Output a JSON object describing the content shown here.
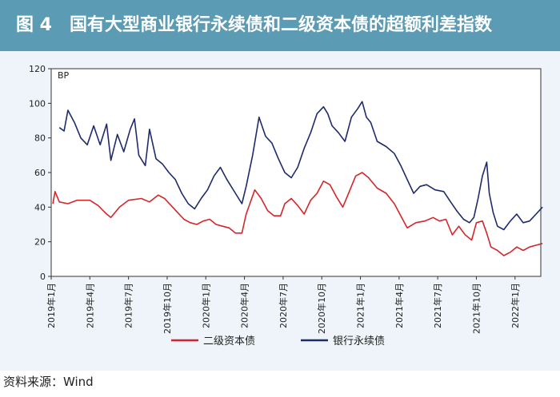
{
  "header": {
    "title": "图 4　国有大型商业银行永续债和二级资本债的超额利差指数"
  },
  "source": "资料来源：Wind",
  "colors": {
    "header_bg": "#5b9bb4",
    "panel_bg": "#eef4fa",
    "tier2": "#d3262b",
    "perpetual": "#1f2a6b"
  },
  "chart_data": {
    "type": "line",
    "ylabel": "BP",
    "ylim": [
      0,
      120
    ],
    "yticks": [
      0,
      20,
      40,
      60,
      80,
      100,
      120
    ],
    "xlim": [
      "2019-01",
      "2022-03"
    ],
    "xticks": [
      "2019年1月",
      "2019年4月",
      "2019年7月",
      "2019年10月",
      "2020年1月",
      "2020年4月",
      "2020年7月",
      "2020年10月",
      "2021年1月",
      "2021年4月",
      "2021年7月",
      "2021年10月",
      "2022年1月"
    ],
    "grid": false,
    "legend_position": "bottom",
    "series": [
      {
        "name": "二级资本债",
        "color": "#d3262b",
        "points": [
          [
            "2019-01-05",
            42
          ],
          [
            "2019-01-10",
            49
          ],
          [
            "2019-01-20",
            43
          ],
          [
            "2019-02-10",
            42
          ],
          [
            "2019-03-01",
            44
          ],
          [
            "2019-04-01",
            44
          ],
          [
            "2019-04-20",
            41
          ],
          [
            "2019-05-10",
            36
          ],
          [
            "2019-05-20",
            34
          ],
          [
            "2019-06-10",
            40
          ],
          [
            "2019-07-01",
            44
          ],
          [
            "2019-08-01",
            45
          ],
          [
            "2019-08-20",
            43
          ],
          [
            "2019-09-10",
            47
          ],
          [
            "2019-09-25",
            45
          ],
          [
            "2019-10-10",
            41
          ],
          [
            "2019-10-25",
            37
          ],
          [
            "2019-11-10",
            33
          ],
          [
            "2019-11-25",
            31
          ],
          [
            "2019-12-10",
            30
          ],
          [
            "2019-12-25",
            32
          ],
          [
            "2020-01-10",
            33
          ],
          [
            "2020-01-25",
            30
          ],
          [
            "2020-02-10",
            29
          ],
          [
            "2020-02-25",
            28
          ],
          [
            "2020-03-10",
            25
          ],
          [
            "2020-03-25",
            25
          ],
          [
            "2020-04-05",
            36
          ],
          [
            "2020-04-15",
            43
          ],
          [
            "2020-04-25",
            50
          ],
          [
            "2020-05-10",
            45
          ],
          [
            "2020-05-25",
            38
          ],
          [
            "2020-06-10",
            35
          ],
          [
            "2020-06-25",
            35
          ],
          [
            "2020-07-05",
            42
          ],
          [
            "2020-07-20",
            45
          ],
          [
            "2020-08-05",
            41
          ],
          [
            "2020-08-20",
            36
          ],
          [
            "2020-09-05",
            44
          ],
          [
            "2020-09-20",
            48
          ],
          [
            "2020-10-05",
            55
          ],
          [
            "2020-10-20",
            53
          ],
          [
            "2020-11-05",
            46
          ],
          [
            "2020-11-20",
            40
          ],
          [
            "2020-12-05",
            49
          ],
          [
            "2020-12-20",
            58
          ],
          [
            "2021-01-05",
            60
          ],
          [
            "2021-01-20",
            57
          ],
          [
            "2021-02-10",
            51
          ],
          [
            "2021-03-01",
            48
          ],
          [
            "2021-03-20",
            42
          ],
          [
            "2021-04-05",
            35
          ],
          [
            "2021-04-20",
            28
          ],
          [
            "2021-05-10",
            31
          ],
          [
            "2021-06-01",
            32
          ],
          [
            "2021-06-20",
            34
          ],
          [
            "2021-07-05",
            32
          ],
          [
            "2021-07-20",
            33
          ],
          [
            "2021-08-05",
            24
          ],
          [
            "2021-08-20",
            29
          ],
          [
            "2021-09-05",
            24
          ],
          [
            "2021-09-20",
            21
          ],
          [
            "2021-10-01",
            31
          ],
          [
            "2021-10-15",
            32
          ],
          [
            "2021-10-25",
            25
          ],
          [
            "2021-11-05",
            17
          ],
          [
            "2021-11-20",
            15
          ],
          [
            "2021-12-05",
            12
          ],
          [
            "2021-12-20",
            14
          ],
          [
            "2022-01-05",
            17
          ],
          [
            "2022-01-20",
            15
          ],
          [
            "2022-02-05",
            17
          ],
          [
            "2022-02-20",
            18
          ],
          [
            "2022-03-05",
            19
          ]
        ]
      },
      {
        "name": "银行永续债",
        "color": "#1f2a6b",
        "points": [
          [
            "2019-01-20",
            86
          ],
          [
            "2019-02-01",
            84
          ],
          [
            "2019-02-10",
            96
          ],
          [
            "2019-02-25",
            89
          ],
          [
            "2019-03-10",
            80
          ],
          [
            "2019-03-25",
            76
          ],
          [
            "2019-04-10",
            87
          ],
          [
            "2019-04-25",
            76
          ],
          [
            "2019-05-10",
            88
          ],
          [
            "2019-05-20",
            67
          ],
          [
            "2019-06-05",
            82
          ],
          [
            "2019-06-20",
            72
          ],
          [
            "2019-07-05",
            85
          ],
          [
            "2019-07-15",
            91
          ],
          [
            "2019-07-25",
            70
          ],
          [
            "2019-08-10",
            64
          ],
          [
            "2019-08-20",
            85
          ],
          [
            "2019-09-05",
            68
          ],
          [
            "2019-09-20",
            65
          ],
          [
            "2019-10-05",
            60
          ],
          [
            "2019-10-20",
            56
          ],
          [
            "2019-11-05",
            48
          ],
          [
            "2019-11-20",
            42
          ],
          [
            "2019-12-05",
            39
          ],
          [
            "2019-12-20",
            45
          ],
          [
            "2020-01-05",
            50
          ],
          [
            "2020-01-20",
            58
          ],
          [
            "2020-02-05",
            63
          ],
          [
            "2020-02-20",
            56
          ],
          [
            "2020-03-10",
            48
          ],
          [
            "2020-03-25",
            42
          ],
          [
            "2020-04-05",
            52
          ],
          [
            "2020-04-20",
            70
          ],
          [
            "2020-05-05",
            92
          ],
          [
            "2020-05-20",
            81
          ],
          [
            "2020-06-05",
            77
          ],
          [
            "2020-06-20",
            68
          ],
          [
            "2020-07-05",
            60
          ],
          [
            "2020-07-20",
            57
          ],
          [
            "2020-08-05",
            63
          ],
          [
            "2020-08-20",
            74
          ],
          [
            "2020-09-05",
            83
          ],
          [
            "2020-09-20",
            94
          ],
          [
            "2020-10-05",
            98
          ],
          [
            "2020-10-15",
            94
          ],
          [
            "2020-10-25",
            87
          ],
          [
            "2020-11-10",
            83
          ],
          [
            "2020-11-25",
            78
          ],
          [
            "2020-12-10",
            92
          ],
          [
            "2020-12-25",
            97
          ],
          [
            "2021-01-05",
            101
          ],
          [
            "2021-01-15",
            92
          ],
          [
            "2021-01-25",
            89
          ],
          [
            "2021-02-10",
            78
          ],
          [
            "2021-03-01",
            75
          ],
          [
            "2021-03-20",
            71
          ],
          [
            "2021-04-05",
            64
          ],
          [
            "2021-04-20",
            56
          ],
          [
            "2021-05-05",
            48
          ],
          [
            "2021-05-20",
            52
          ],
          [
            "2021-06-05",
            53
          ],
          [
            "2021-06-25",
            50
          ],
          [
            "2021-07-15",
            49
          ],
          [
            "2021-08-01",
            43
          ],
          [
            "2021-08-15",
            38
          ],
          [
            "2021-09-01",
            33
          ],
          [
            "2021-09-15",
            31
          ],
          [
            "2021-09-25",
            34
          ],
          [
            "2021-10-05",
            45
          ],
          [
            "2021-10-15",
            58
          ],
          [
            "2021-10-25",
            66
          ],
          [
            "2021-11-01",
            48
          ],
          [
            "2021-11-10",
            37
          ],
          [
            "2021-11-20",
            29
          ],
          [
            "2021-12-05",
            27
          ],
          [
            "2021-12-20",
            32
          ],
          [
            "2022-01-05",
            36
          ],
          [
            "2022-01-20",
            31
          ],
          [
            "2022-02-05",
            32
          ],
          [
            "2022-02-20",
            36
          ],
          [
            "2022-03-05",
            40
          ]
        ]
      }
    ]
  }
}
